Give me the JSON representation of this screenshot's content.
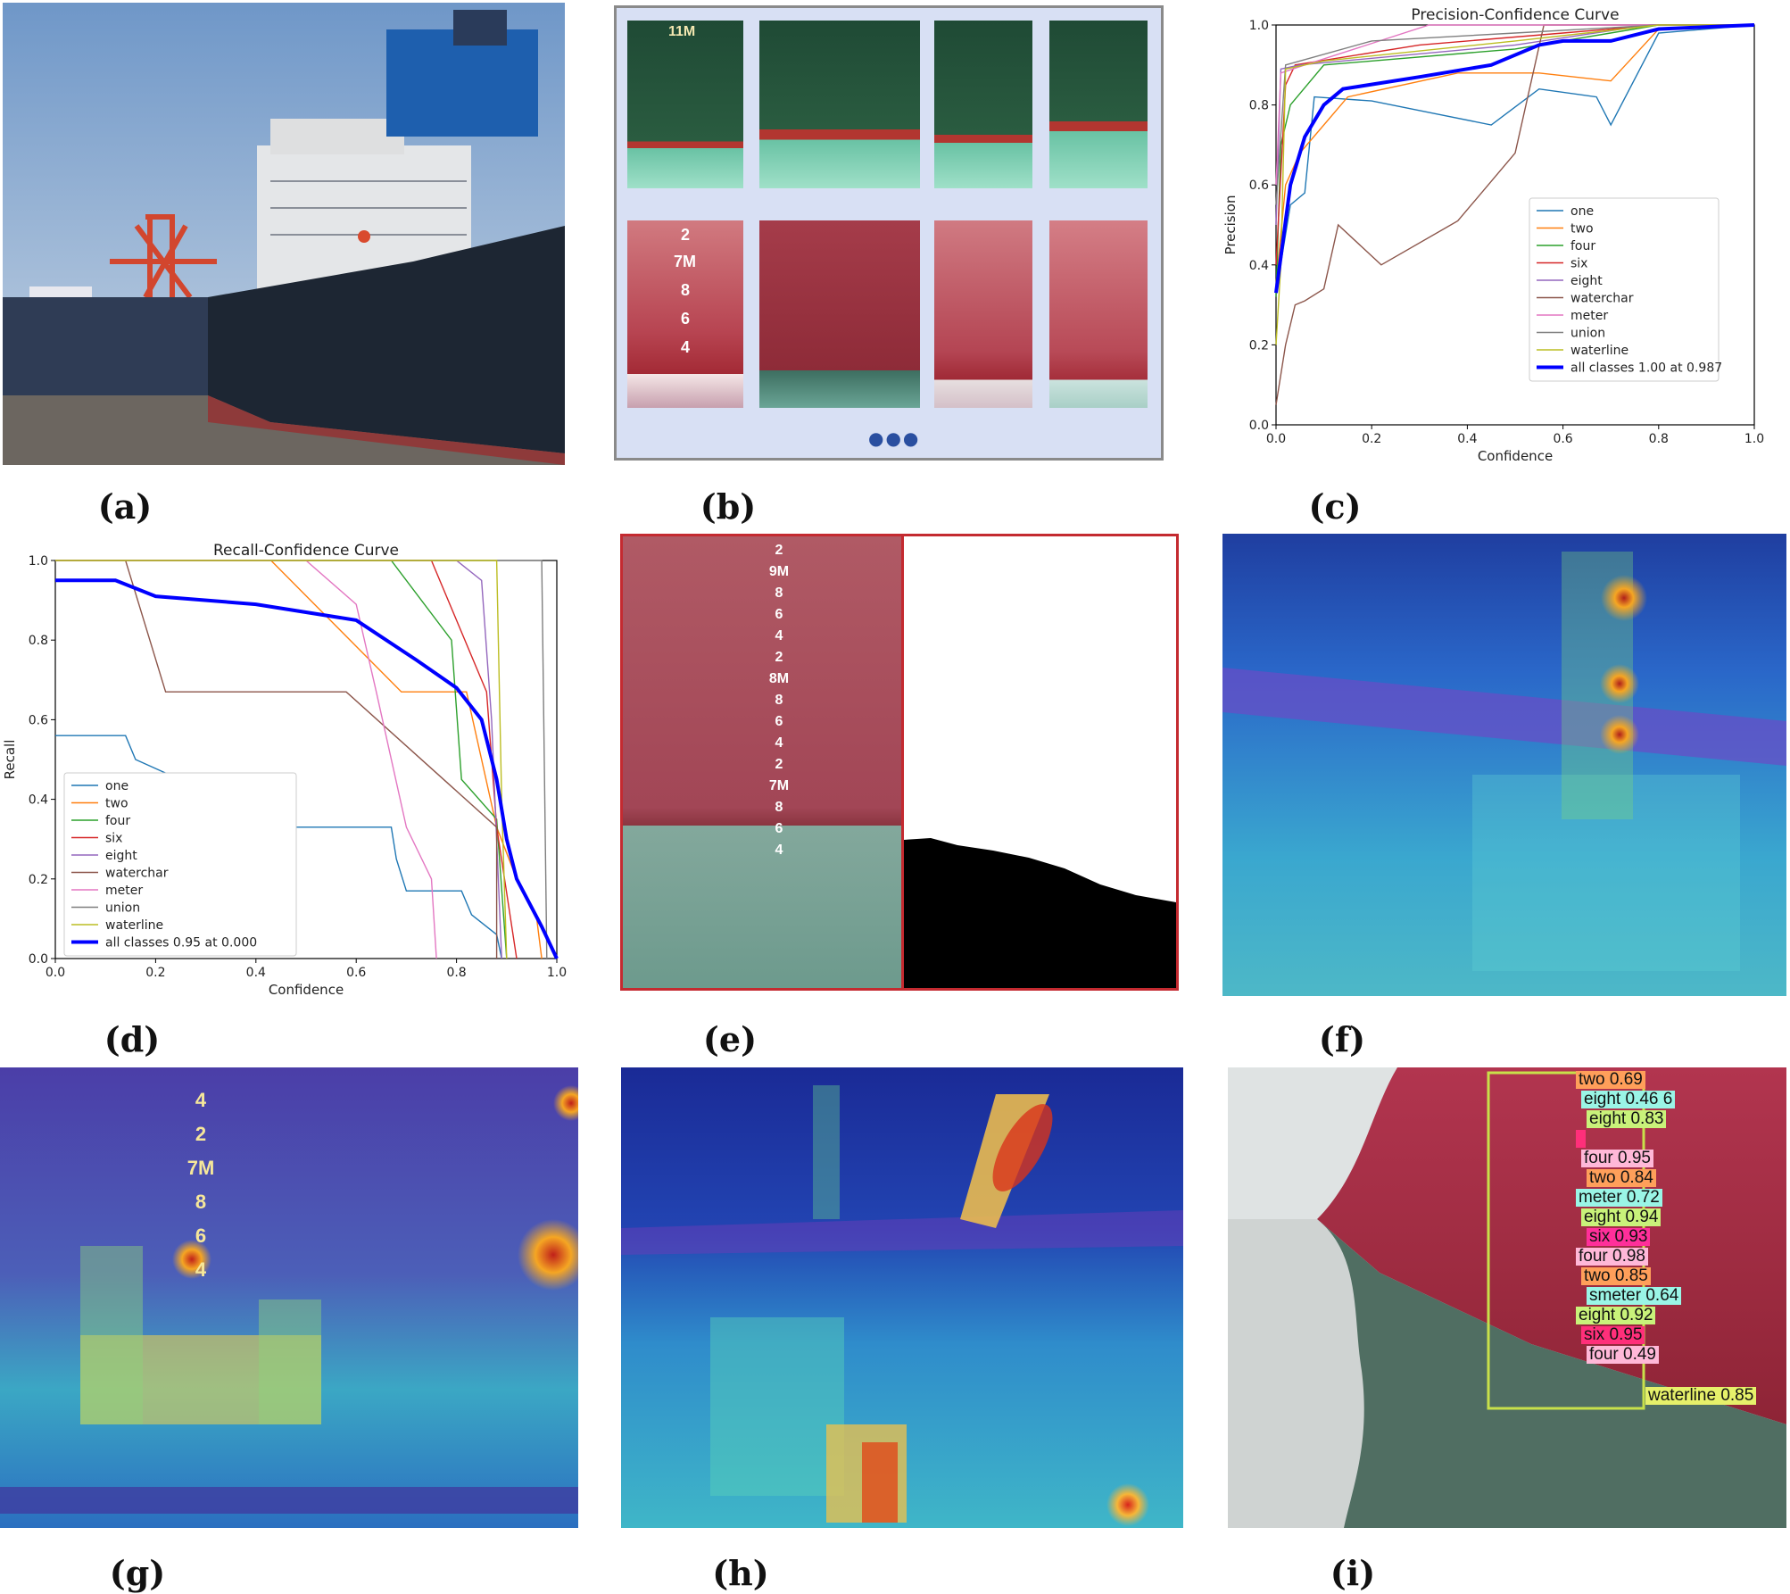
{
  "captions": {
    "a": "(a)",
    "b": "(b)",
    "c": "(c)",
    "d": "(d)",
    "e": "(e)",
    "f": "(f)",
    "g": "(g)",
    "h": "(h)",
    "i": "(i)"
  },
  "panel_b": {
    "top_row_marks": [
      "11M",
      "",
      "",
      ""
    ],
    "bottom_row_marks": [
      "2",
      "7M",
      "8",
      "6",
      "4"
    ],
    "dots": "●●●"
  },
  "panel_e": {
    "draft_marks": [
      "2",
      "9M",
      "8",
      "6",
      "4",
      "2",
      "8M",
      "8",
      "6",
      "4",
      "2",
      "7M",
      "8",
      "6",
      "4"
    ]
  },
  "panel_g": {
    "marks": [
      "4",
      "2",
      "7M",
      "8",
      "6",
      "4"
    ]
  },
  "panel_i": {
    "detections": [
      {
        "label": "two 0.69",
        "color": "#ff9f5a"
      },
      {
        "label": "eight 0.46 6",
        "color": "#9af5e6"
      },
      {
        "label": "eight 0.83",
        "color": "#c9f27a"
      },
      {
        "label": "",
        "color": "#ff2f7a"
      },
      {
        "label": "four 0.95",
        "color": "#ffb8d8"
      },
      {
        "label": "two 0.84",
        "color": "#ff9f5a"
      },
      {
        "label": "meter 0.72",
        "color": "#9af5e6"
      },
      {
        "label": "eight 0.94",
        "color": "#c9f27a"
      },
      {
        "label": "six 0.93",
        "color": "#ff2f9a"
      },
      {
        "label": "four 0.98",
        "color": "#ffb8d8"
      },
      {
        "label": "two 0.85",
        "color": "#ff9f5a"
      },
      {
        "label": "smeter 0.64",
        "color": "#9af5e6"
      },
      {
        "label": "eight 0.92",
        "color": "#c9f27a"
      },
      {
        "label": "six 0.95",
        "color": "#ff2f7a"
      },
      {
        "label": "four 0.49",
        "color": "#ffb8d8"
      }
    ],
    "waterline_label": "waterline 0.85"
  },
  "chart_data": [
    {
      "type": "line",
      "title": "Precision-Confidence Curve",
      "xlabel": "Confidence",
      "ylabel": "Precision",
      "xlim": [
        0,
        1
      ],
      "ylim": [
        0,
        1
      ],
      "xticks": [
        "0.0",
        "0.2",
        "0.4",
        "0.6",
        "0.8",
        "1.0"
      ],
      "yticks": [
        "0.0",
        "0.2",
        "0.4",
        "0.6",
        "0.8",
        "1.0"
      ],
      "legend_position": "center-right",
      "series": [
        {
          "name": "one",
          "color": "#1f77b4",
          "points": [
            [
              0,
              0.33
            ],
            [
              0.03,
              0.55
            ],
            [
              0.06,
              0.58
            ],
            [
              0.08,
              0.82
            ],
            [
              0.2,
              0.81
            ],
            [
              0.45,
              0.75
            ],
            [
              0.55,
              0.84
            ],
            [
              0.67,
              0.82
            ],
            [
              0.7,
              0.75
            ],
            [
              0.8,
              0.98
            ],
            [
              1,
              1
            ]
          ]
        },
        {
          "name": "two",
          "color": "#ff7f0e",
          "points": [
            [
              0,
              0.35
            ],
            [
              0.02,
              0.6
            ],
            [
              0.05,
              0.68
            ],
            [
              0.15,
              0.82
            ],
            [
              0.38,
              0.88
            ],
            [
              0.55,
              0.88
            ],
            [
              0.7,
              0.86
            ],
            [
              0.8,
              0.99
            ],
            [
              1,
              1
            ]
          ]
        },
        {
          "name": "four",
          "color": "#2ca02c",
          "points": [
            [
              0,
              0.32
            ],
            [
              0.01,
              0.7
            ],
            [
              0.03,
              0.8
            ],
            [
              0.1,
              0.9
            ],
            [
              0.5,
              0.94
            ],
            [
              0.8,
              1
            ],
            [
              1,
              1
            ]
          ]
        },
        {
          "name": "six",
          "color": "#d62728",
          "points": [
            [
              0,
              0.4
            ],
            [
              0.02,
              0.85
            ],
            [
              0.04,
              0.9
            ],
            [
              0.3,
              0.95
            ],
            [
              0.6,
              0.98
            ],
            [
              0.8,
              1
            ],
            [
              1,
              1
            ]
          ]
        },
        {
          "name": "eight",
          "color": "#9467bd",
          "points": [
            [
              0,
              0.5
            ],
            [
              0.01,
              0.89
            ],
            [
              0.05,
              0.9
            ],
            [
              0.5,
              0.95
            ],
            [
              0.78,
              1
            ],
            [
              1,
              1
            ]
          ]
        },
        {
          "name": "waterchar",
          "color": "#8c564b",
          "points": [
            [
              0,
              0.05
            ],
            [
              0.02,
              0.2
            ],
            [
              0.04,
              0.3
            ],
            [
              0.06,
              0.31
            ],
            [
              0.1,
              0.34
            ],
            [
              0.13,
              0.5
            ],
            [
              0.22,
              0.4
            ],
            [
              0.38,
              0.51
            ],
            [
              0.5,
              0.68
            ],
            [
              0.56,
              1
            ],
            [
              1,
              1
            ]
          ]
        },
        {
          "name": "meter",
          "color": "#e377c2",
          "points": [
            [
              0,
              0.6
            ],
            [
              0.01,
              0.88
            ],
            [
              0.06,
              0.9
            ],
            [
              0.32,
              1
            ],
            [
              1,
              1
            ]
          ]
        },
        {
          "name": "union",
          "color": "#7f7f7f",
          "points": [
            [
              0,
              0.55
            ],
            [
              0.02,
              0.9
            ],
            [
              0.2,
              0.96
            ],
            [
              0.5,
              0.98
            ],
            [
              0.8,
              1
            ],
            [
              1,
              1
            ]
          ]
        },
        {
          "name": "waterline",
          "color": "#bcbd22",
          "points": [
            [
              0,
              0.2
            ],
            [
              0.01,
              0.4
            ],
            [
              0.02,
              0.89
            ],
            [
              0.1,
              0.91
            ],
            [
              0.5,
              0.96
            ],
            [
              0.8,
              1
            ],
            [
              1,
              1
            ]
          ]
        },
        {
          "name": "all classes 1.00 at 0.987",
          "color": "#0000ff",
          "bold": true,
          "points": [
            [
              0,
              0.33
            ],
            [
              0.03,
              0.6
            ],
            [
              0.06,
              0.72
            ],
            [
              0.1,
              0.8
            ],
            [
              0.14,
              0.84
            ],
            [
              0.3,
              0.87
            ],
            [
              0.45,
              0.9
            ],
            [
              0.55,
              0.95
            ],
            [
              0.6,
              0.96
            ],
            [
              0.7,
              0.96
            ],
            [
              0.8,
              0.99
            ],
            [
              1,
              1
            ]
          ]
        }
      ]
    },
    {
      "type": "line",
      "title": "Recall-Confidence Curve",
      "xlabel": "Confidence",
      "ylabel": "Recall",
      "xlim": [
        0,
        1
      ],
      "ylim": [
        0,
        1
      ],
      "xticks": [
        "0.0",
        "0.2",
        "0.4",
        "0.6",
        "0.8",
        "1.0"
      ],
      "yticks": [
        "0.0",
        "0.2",
        "0.4",
        "0.6",
        "0.8",
        "1.0"
      ],
      "legend_position": "lower-left",
      "series": [
        {
          "name": "one",
          "color": "#1f77b4",
          "points": [
            [
              0,
              0.56
            ],
            [
              0.14,
              0.56
            ],
            [
              0.16,
              0.5
            ],
            [
              0.46,
              0.33
            ],
            [
              0.67,
              0.33
            ],
            [
              0.68,
              0.25
            ],
            [
              0.7,
              0.17
            ],
            [
              0.81,
              0.17
            ],
            [
              0.83,
              0.11
            ],
            [
              0.88,
              0.06
            ],
            [
              0.89,
              0
            ]
          ]
        },
        {
          "name": "two",
          "color": "#ff7f0e",
          "points": [
            [
              0,
              1
            ],
            [
              0.43,
              1
            ],
            [
              0.69,
              0.67
            ],
            [
              0.82,
              0.67
            ],
            [
              0.88,
              0.33
            ],
            [
              0.92,
              0.2
            ],
            [
              0.96,
              0.1
            ],
            [
              0.97,
              0
            ]
          ]
        },
        {
          "name": "four",
          "color": "#2ca02c",
          "points": [
            [
              0,
              1
            ],
            [
              0.67,
              1
            ],
            [
              0.79,
              0.8
            ],
            [
              0.81,
              0.45
            ],
            [
              0.88,
              0.35
            ],
            [
              0.9,
              0
            ]
          ]
        },
        {
          "name": "six",
          "color": "#d62728",
          "points": [
            [
              0,
              1
            ],
            [
              0.75,
              1
            ],
            [
              0.86,
              0.67
            ],
            [
              0.88,
              0.33
            ],
            [
              0.92,
              0
            ]
          ]
        },
        {
          "name": "eight",
          "color": "#9467bd",
          "points": [
            [
              0,
              1
            ],
            [
              0.8,
              1
            ],
            [
              0.85,
              0.95
            ],
            [
              0.87,
              0.6
            ],
            [
              0.89,
              0
            ]
          ]
        },
        {
          "name": "waterchar",
          "color": "#8c564b",
          "points": [
            [
              0,
              1
            ],
            [
              0.14,
              1
            ],
            [
              0.22,
              0.67
            ],
            [
              0.58,
              0.67
            ],
            [
              0.88,
              0.33
            ],
            [
              0.88,
              0
            ]
          ]
        },
        {
          "name": "meter",
          "color": "#e377c2",
          "points": [
            [
              0,
              1
            ],
            [
              0.5,
              1
            ],
            [
              0.6,
              0.89
            ],
            [
              0.64,
              0.67
            ],
            [
              0.7,
              0.33
            ],
            [
              0.75,
              0.2
            ],
            [
              0.76,
              0
            ]
          ]
        },
        {
          "name": "union",
          "color": "#7f7f7f",
          "points": [
            [
              0,
              1
            ],
            [
              0.97,
              1
            ],
            [
              0.98,
              0
            ]
          ]
        },
        {
          "name": "waterline",
          "color": "#bcbd22",
          "points": [
            [
              0,
              1
            ],
            [
              0.88,
              1
            ],
            [
              0.89,
              0.4
            ],
            [
              0.9,
              0
            ]
          ]
        },
        {
          "name": "all classes 0.95 at 0.000",
          "color": "#0000ff",
          "bold": true,
          "points": [
            [
              0,
              0.95
            ],
            [
              0.12,
              0.95
            ],
            [
              0.2,
              0.91
            ],
            [
              0.4,
              0.89
            ],
            [
              0.6,
              0.85
            ],
            [
              0.72,
              0.75
            ],
            [
              0.8,
              0.68
            ],
            [
              0.85,
              0.6
            ],
            [
              0.88,
              0.45
            ],
            [
              0.9,
              0.3
            ],
            [
              0.92,
              0.2
            ],
            [
              0.97,
              0.08
            ],
            [
              1,
              0
            ]
          ]
        }
      ]
    }
  ]
}
